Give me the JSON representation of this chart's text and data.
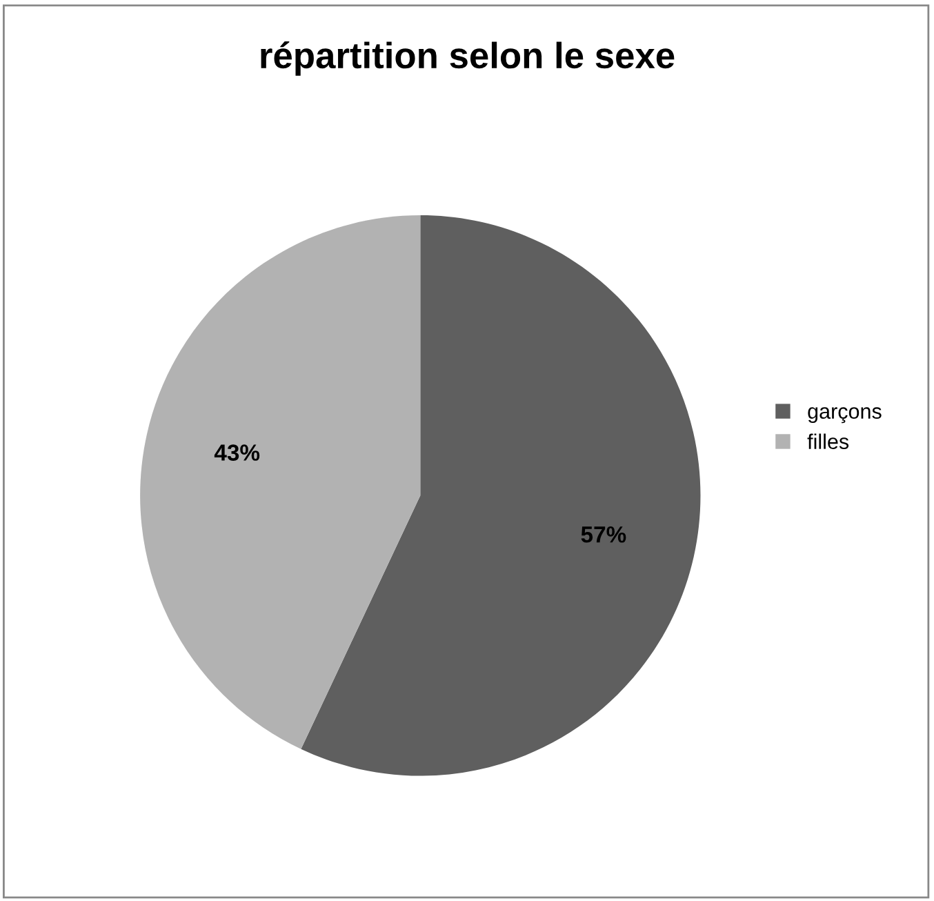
{
  "chart_data": {
    "type": "pie",
    "title": "répartition selon le sexe",
    "categories": [
      "garçons",
      "filles"
    ],
    "values": [
      57,
      43
    ],
    "colors": [
      "#5f5f5f",
      "#b2b2b2"
    ],
    "value_labels": [
      "57%",
      "43%"
    ],
    "legend": "right"
  }
}
